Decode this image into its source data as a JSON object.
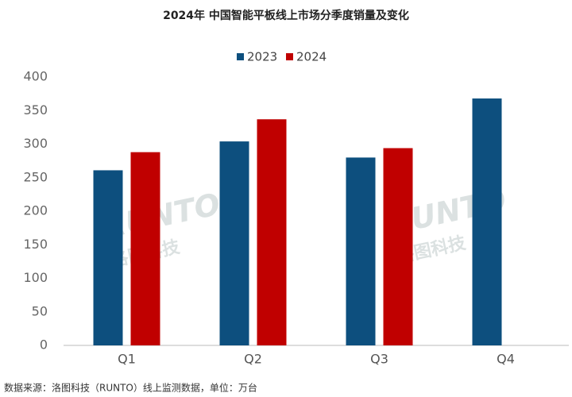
{
  "chart_data": {
    "type": "bar",
    "title": "2024年 中国智能平板线上市场分季度销量及变化",
    "categories": [
      "Q1",
      "Q2",
      "Q3",
      "Q4"
    ],
    "series": [
      {
        "name": "2023",
        "color": "#0d4f7e",
        "values": [
          261,
          304,
          280,
          368
        ]
      },
      {
        "name": "2024",
        "color": "#c00000",
        "values": [
          288,
          337,
          294,
          null
        ]
      }
    ],
    "ylim": [
      0,
      400
    ],
    "yticks": [
      0,
      50,
      100,
      150,
      200,
      250,
      300,
      350,
      400
    ],
    "grid": false,
    "legend": "top",
    "watermark": [
      "RUNTO",
      "洛图科技"
    ],
    "source": "数据来源：洛图科技（RUNTO）线上监测数据，单位：万台"
  }
}
